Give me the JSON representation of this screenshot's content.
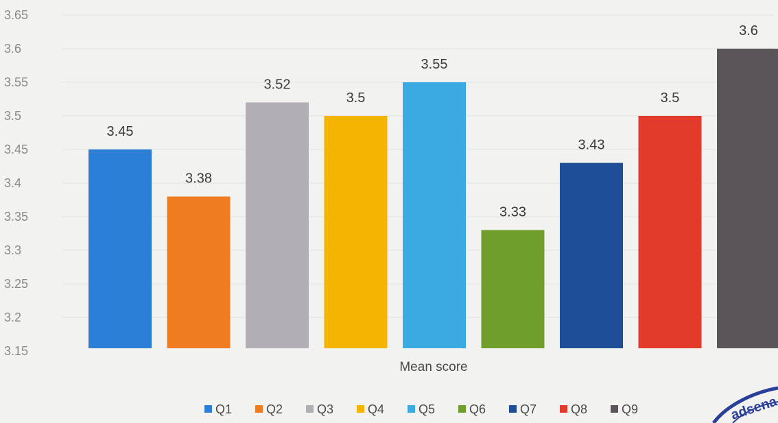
{
  "chart_data": {
    "type": "bar",
    "categories": [
      "Q1",
      "Q2",
      "Q3",
      "Q4",
      "Q5",
      "Q6",
      "Q7",
      "Q8",
      "Q9"
    ],
    "values": [
      3.45,
      3.38,
      3.52,
      3.5,
      3.55,
      3.33,
      3.43,
      3.5,
      3.6
    ],
    "data_labels": [
      "3.45",
      "3.38",
      "3.52",
      "3.5",
      "3.55",
      "3.33",
      "3.43",
      "3.5",
      "3.6"
    ],
    "colors": [
      "#2b7fd6",
      "#f07c22",
      "#b3adb6",
      "#f5b400",
      "#3aaae2",
      "#6f9e2a",
      "#1f4e99",
      "#e23a2b",
      "#5b5459"
    ],
    "xlabel": "Mean score",
    "ylim": [
      3.15,
      3.65
    ],
    "yticks": [
      "3.15",
      "3.2",
      "3.25",
      "3.3",
      "3.35",
      "3.4",
      "3.45",
      "3.5",
      "3.55",
      "3.6",
      "3.65"
    ],
    "grid": true,
    "legend": {
      "placement": "bottom",
      "entries": [
        "Q1",
        "Q2",
        "Q3",
        "Q4",
        "Q5",
        "Q6",
        "Q7",
        "Q8",
        "Q9"
      ]
    }
  },
  "stamp_text": "adsena G"
}
